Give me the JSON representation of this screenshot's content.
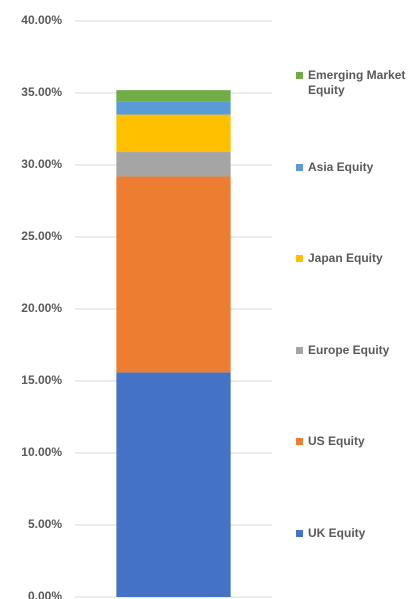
{
  "chart_data": {
    "type": "bar",
    "stacked": true,
    "categories": [
      null
    ],
    "series": [
      {
        "name": "UK Equity",
        "color": "#4472c4",
        "values": [
          15.6
        ]
      },
      {
        "name": "US Equity",
        "color": "#ed7d31",
        "values": [
          13.6
        ]
      },
      {
        "name": "Europe Equity",
        "color": "#a5a5a5",
        "values": [
          1.7
        ]
      },
      {
        "name": "Japan Equity",
        "color": "#ffc000",
        "values": [
          2.6
        ]
      },
      {
        "name": "Asia Equity",
        "color": "#5b9bd5",
        "values": [
          0.9
        ]
      },
      {
        "name": "Emerging Market Equity",
        "color": "#70ad47",
        "values": [
          0.8
        ]
      }
    ],
    "ylim": [
      0,
      40
    ],
    "yticks": [
      {
        "value": 0,
        "label": "0.00%"
      },
      {
        "value": 5,
        "label": "5.00%"
      },
      {
        "value": 10,
        "label": "10.00%"
      },
      {
        "value": 15,
        "label": "15.00%"
      },
      {
        "value": 20,
        "label": "20.00%"
      },
      {
        "value": 25,
        "label": "25.00%"
      },
      {
        "value": 30,
        "label": "30.00%"
      },
      {
        "value": 35,
        "label": "35.00%"
      },
      {
        "value": 40,
        "label": "40.00%"
      }
    ],
    "grid": true,
    "legend": "right"
  }
}
